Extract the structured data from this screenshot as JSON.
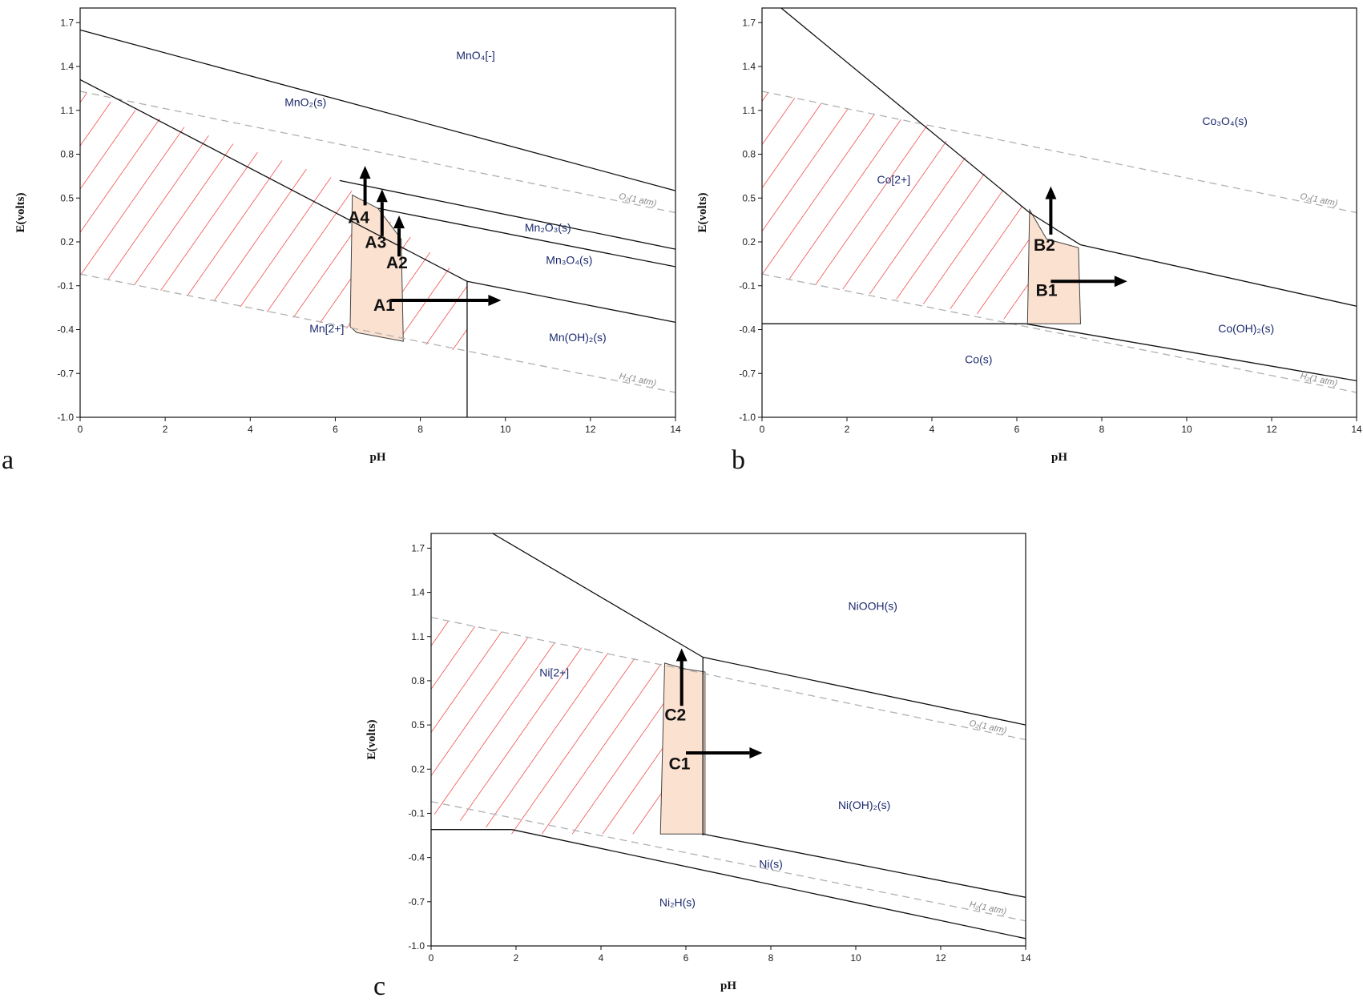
{
  "chart_data": [
    {
      "type": "line",
      "panel": "a",
      "xlabel": "pH",
      "ylabel": "E(volts)",
      "xlim": [
        0,
        14
      ],
      "ylim": [
        -1.0,
        1.8
      ],
      "xticks": [
        "0",
        "2",
        "4",
        "6",
        "8",
        "10",
        "12",
        "14"
      ],
      "yticks": [
        "1.7",
        "1.4",
        "1.1",
        "0.8",
        "0.5",
        "0.2",
        "-0.1",
        "-0.4",
        "-0.7",
        "-1.0"
      ],
      "boundaries": [
        [
          [
            0,
            1.65
          ],
          [
            14,
            0.55
          ]
        ],
        [
          [
            0,
            1.31
          ],
          [
            9.1,
            -0.07
          ]
        ],
        [
          [
            6.1,
            0.62
          ],
          [
            14,
            0.15
          ]
        ],
        [
          [
            7.0,
            0.43
          ],
          [
            14,
            0.03
          ]
        ],
        [
          [
            9.1,
            -0.07
          ],
          [
            14,
            -0.35
          ]
        ],
        [
          [
            9.1,
            -0.07
          ],
          [
            9.1,
            -1.0
          ]
        ]
      ],
      "gas_lines": [
        {
          "label": "O₂(1 atm)",
          "points": [
            [
              0,
              1.23
            ],
            [
              14,
              0.4
            ]
          ],
          "label_at": [
            13.1,
            0.47
          ]
        },
        {
          "label": "H₂(1 atm)",
          "points": [
            [
              0,
              -0.02
            ],
            [
              14,
              -0.83
            ]
          ],
          "label_at": [
            13.1,
            -0.76
          ]
        }
      ],
      "hatch_polygon": [
        [
          0,
          1.23
        ],
        [
          6.1,
          0.62
        ],
        [
          6.5,
          0.52
        ],
        [
          9.1,
          -0.07
        ],
        [
          9.1,
          -0.56
        ],
        [
          0,
          -0.02
        ]
      ],
      "stability_window": [
        [
          6.4,
          0.52
        ],
        [
          7.0,
          0.43
        ],
        [
          7.55,
          0.22
        ],
        [
          7.6,
          -0.48
        ],
        [
          6.5,
          -0.42
        ],
        [
          6.35,
          -0.38
        ]
      ],
      "regions": [
        {
          "label": "MnO₄[-]",
          "at": [
            9.3,
            1.45
          ]
        },
        {
          "label": "MnO₂(s)",
          "at": [
            5.3,
            1.13
          ]
        },
        {
          "label": "Mn₂O₃(s)",
          "at": [
            11.0,
            0.27
          ]
        },
        {
          "label": "Mn₃O₄(s)",
          "at": [
            11.5,
            0.05
          ]
        },
        {
          "label": "Mn(OH)₂(s)",
          "at": [
            11.7,
            -0.48
          ]
        },
        {
          "label": "Mn[2+]",
          "at": [
            5.8,
            -0.42
          ]
        }
      ],
      "annotations": [
        {
          "label": "A1",
          "arrow": [
            [
              7.3,
              -0.2
            ],
            [
              9.9,
              -0.2
            ]
          ],
          "label_at": [
            7.15,
            -0.27
          ]
        },
        {
          "label": "A2",
          "arrow": [
            [
              7.5,
              0.1
            ],
            [
              7.5,
              0.38
            ]
          ],
          "label_at": [
            7.45,
            0.02
          ]
        },
        {
          "label": "A3",
          "arrow": [
            [
              7.1,
              0.24
            ],
            [
              7.1,
              0.56
            ]
          ],
          "label_at": [
            6.95,
            0.16
          ]
        },
        {
          "label": "A4",
          "arrow": [
            [
              6.7,
              0.45
            ],
            [
              6.7,
              0.72
            ]
          ],
          "label_at": [
            6.55,
            0.33
          ]
        }
      ]
    },
    {
      "type": "line",
      "panel": "b",
      "xlabel": "pH",
      "ylabel": "E(volts)",
      "xlim": [
        0,
        14
      ],
      "ylim": [
        -1.0,
        1.8
      ],
      "xticks": [
        "0",
        "2",
        "4",
        "6",
        "8",
        "10",
        "12",
        "14"
      ],
      "yticks": [
        "1.7",
        "1.4",
        "1.1",
        "0.8",
        "0.5",
        "0.2",
        "-0.1",
        "-0.4",
        "-0.7",
        "-1.0"
      ],
      "boundaries": [
        [
          [
            0.45,
            1.8
          ],
          [
            6.3,
            0.4
          ]
        ],
        [
          [
            6.3,
            0.4
          ],
          [
            7.5,
            0.18
          ]
        ],
        [
          [
            7.5,
            0.18
          ],
          [
            14,
            -0.24
          ]
        ],
        [
          [
            0,
            -0.36
          ],
          [
            6.2,
            -0.36
          ]
        ],
        [
          [
            6.2,
            -0.36
          ],
          [
            14,
            -0.75
          ]
        ]
      ],
      "gas_lines": [
        {
          "label": "O₂(1 atm)",
          "points": [
            [
              0,
              1.23
            ],
            [
              14,
              0.4
            ]
          ],
          "label_at": [
            13.1,
            0.47
          ]
        },
        {
          "label": "H₂(1 atm)",
          "points": [
            [
              0,
              -0.02
            ],
            [
              14,
              -0.83
            ]
          ],
          "label_at": [
            13.1,
            -0.76
          ]
        }
      ],
      "hatch_polygon": [
        [
          0,
          1.23
        ],
        [
          3.9,
          1.0
        ],
        [
          6.3,
          0.4
        ],
        [
          6.3,
          -0.36
        ],
        [
          0,
          -0.02
        ]
      ],
      "stability_window": [
        [
          6.3,
          0.42
        ],
        [
          6.7,
          0.22
        ],
        [
          7.45,
          0.16
        ],
        [
          7.5,
          -0.36
        ],
        [
          6.25,
          -0.36
        ]
      ],
      "regions": [
        {
          "label": "Co₃O₄(s)",
          "at": [
            10.9,
            1.0
          ]
        },
        {
          "label": "Co[2+]",
          "at": [
            3.1,
            0.6
          ]
        },
        {
          "label": "Co(OH)₂(s)",
          "at": [
            11.4,
            -0.42
          ]
        },
        {
          "label": "Co(s)",
          "at": [
            5.1,
            -0.63
          ]
        }
      ],
      "annotations": [
        {
          "label": "B1",
          "arrow": [
            [
              6.8,
              -0.07
            ],
            [
              8.6,
              -0.07
            ]
          ],
          "label_at": [
            6.7,
            -0.17
          ]
        },
        {
          "label": "B2",
          "arrow": [
            [
              6.8,
              0.25
            ],
            [
              6.8,
              0.58
            ]
          ],
          "label_at": [
            6.65,
            0.14
          ]
        }
      ]
    },
    {
      "type": "line",
      "panel": "c",
      "xlabel": "pH",
      "ylabel": "E(volts)",
      "xlim": [
        0,
        14
      ],
      "ylim": [
        -1.0,
        1.8
      ],
      "xticks": [
        "0",
        "2",
        "4",
        "6",
        "8",
        "10",
        "12",
        "14"
      ],
      "yticks": [
        "1.7",
        "1.4",
        "1.1",
        "0.8",
        "0.5",
        "0.2",
        "-0.1",
        "-0.4",
        "-0.7",
        "-1.0"
      ],
      "boundaries": [
        [
          [
            1.45,
            1.8
          ],
          [
            6.4,
            0.96
          ]
        ],
        [
          [
            6.4,
            0.96
          ],
          [
            14,
            0.5
          ]
        ],
        [
          [
            6.4,
            0.96
          ],
          [
            6.4,
            -0.25
          ]
        ],
        [
          [
            0,
            -0.21
          ],
          [
            1.9,
            -0.21
          ]
        ],
        [
          [
            1.9,
            -0.21
          ],
          [
            14,
            -0.95
          ]
        ],
        [
          [
            6.4,
            -0.24
          ],
          [
            14,
            -0.67
          ]
        ]
      ],
      "gas_lines": [
        {
          "label": "O₂(1 atm)",
          "points": [
            [
              0,
              1.23
            ],
            [
              14,
              0.4
            ]
          ],
          "label_at": [
            13.1,
            0.47
          ]
        },
        {
          "label": "H₂(1 atm)",
          "points": [
            [
              0,
              -0.02
            ],
            [
              14,
              -0.83
            ]
          ],
          "label_at": [
            13.1,
            -0.76
          ]
        }
      ],
      "hatch_polygon": [
        [
          0,
          1.23
        ],
        [
          5.5,
          0.91
        ],
        [
          5.5,
          -0.24
        ],
        [
          1.9,
          -0.24
        ],
        [
          0,
          -0.1
        ]
      ],
      "stability_window": [
        [
          5.5,
          0.92
        ],
        [
          6.0,
          0.88
        ],
        [
          6.45,
          0.86
        ],
        [
          6.45,
          -0.24
        ],
        [
          5.4,
          -0.24
        ]
      ],
      "regions": [
        {
          "label": "NiOOH(s)",
          "at": [
            10.4,
            1.28
          ]
        },
        {
          "label": "Ni[2+]",
          "at": [
            2.9,
            0.83
          ]
        },
        {
          "label": "Ni(OH)₂(s)",
          "at": [
            10.2,
            -0.07
          ]
        },
        {
          "label": "Ni(s)",
          "at": [
            8.0,
            -0.47
          ]
        },
        {
          "label": "Ni₂H(s)",
          "at": [
            5.8,
            -0.73
          ]
        }
      ],
      "annotations": [
        {
          "label": "C1",
          "arrow": [
            [
              6.0,
              0.31
            ],
            [
              7.8,
              0.31
            ]
          ],
          "label_at": [
            5.85,
            0.2
          ]
        },
        {
          "label": "C2",
          "arrow": [
            [
              5.9,
              0.63
            ],
            [
              5.9,
              1.02
            ]
          ],
          "label_at": [
            5.75,
            0.53
          ]
        }
      ]
    }
  ],
  "panel_labels": {
    "a": "a",
    "b": "b",
    "c": "c"
  }
}
